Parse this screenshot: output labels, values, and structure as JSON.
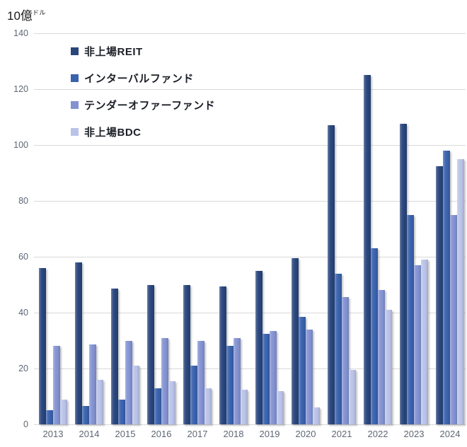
{
  "title": {
    "main": "10億",
    "unit": "ドル"
  },
  "chart_data": {
    "type": "bar",
    "title": "10億ドル",
    "categories": [
      "2013",
      "2014",
      "2015",
      "2016",
      "2017",
      "2018",
      "2019",
      "2020",
      "2021",
      "2022",
      "2023",
      "2024"
    ],
    "series": [
      {
        "key": "non-listed-reit",
        "name": "非上場REIT",
        "color": "#28457C",
        "values": [
          56,
          58,
          48.5,
          50,
          50,
          49.5,
          55,
          59.5,
          107,
          125,
          107.5,
          92.5
        ]
      },
      {
        "key": "interval-fund",
        "name": "インターバルファンド",
        "color": "#3A62AE",
        "values": [
          5,
          6.5,
          9,
          13,
          21,
          28,
          32.5,
          38.5,
          54,
          63,
          75,
          98
        ]
      },
      {
        "key": "tender-offer-fund",
        "name": "テンダーオファーファンド",
        "color": "#8392D2",
        "values": [
          28,
          28.5,
          30,
          31,
          30,
          31,
          33.5,
          34,
          45.5,
          48,
          57,
          75
        ]
      },
      {
        "key": "non-listed-bdc",
        "name": "非上場BDC",
        "color": "#BAC3E8",
        "values": [
          9,
          16,
          21,
          15.5,
          13,
          12.5,
          12,
          6,
          19.5,
          41,
          59,
          95
        ]
      }
    ],
    "xlabel": "",
    "ylabel": "10億ドル",
    "ylim": [
      0,
      140
    ],
    "yticks": [
      0,
      20,
      40,
      60,
      80,
      100,
      120,
      140
    ],
    "grid": true,
    "legend_position": "upper-left-inside"
  },
  "colors": {
    "background": "#FFFFFF",
    "gridline": "#D9D9D9",
    "axis_label": "#5E6673",
    "legend_text": "#1B1F27"
  }
}
